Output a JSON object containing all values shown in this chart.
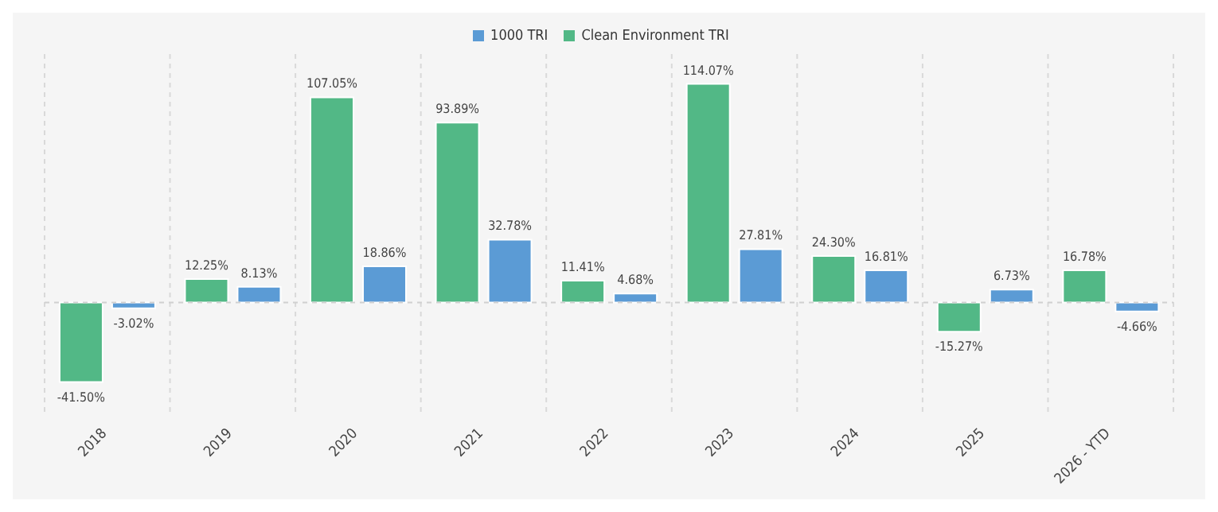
{
  "chart_data": {
    "type": "bar",
    "categories": [
      "2018",
      "2019",
      "2020",
      "2021",
      "2022",
      "2023",
      "2024",
      "2025",
      "2026 - YTD"
    ],
    "series": [
      {
        "name": "Clean Environment TRI",
        "color": "#52b886",
        "values": [
          -41.5,
          12.25,
          107.05,
          93.89,
          11.41,
          114.07,
          24.3,
          -15.27,
          16.78
        ],
        "value_labels": [
          "-41.50%",
          "12.25%",
          "107.05%",
          "93.89%",
          "11.41%",
          "114.07%",
          "24.30%",
          "-15.27%",
          "16.78%"
        ]
      },
      {
        "name": "1000 TRI",
        "color": "#5b9bd5",
        "values": [
          -3.02,
          8.13,
          18.86,
          32.78,
          4.68,
          27.81,
          16.81,
          6.73,
          -4.66
        ],
        "value_labels": [
          "-3.02%",
          "8.13%",
          "18.86%",
          "32.78%",
          "4.68%",
          "27.81%",
          "16.81%",
          "6.73%",
          "-4.66%"
        ]
      }
    ],
    "ref_lines": [
      {
        "axis": "y",
        "value": 0,
        "color": "#d0d0d0",
        "line_style": "dashed"
      }
    ],
    "legend": "top",
    "grid": "x",
    "tick_labels": "x"
  }
}
